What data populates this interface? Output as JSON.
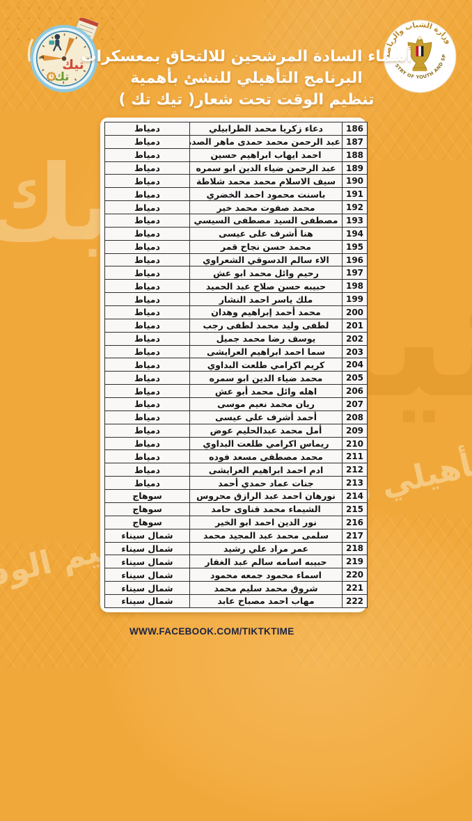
{
  "header": {
    "title_line1": "أسماء السادة المرشحين للالتحاق بمعسكرات",
    "title_line2": "البرنامج التأهيلي للنشئ بأهمية",
    "title_line3": "تنظيم الوقت تحت شعار( تيك تك )",
    "ministry_logo": {
      "arabic": "وزارة الشباب والرياضة",
      "english": "MINISTRY OF YOUTH AND SPORTS"
    },
    "tiktok_logo": {
      "word1": "تيك",
      "word2": "تك"
    }
  },
  "table": {
    "rows": [
      {
        "no": "186",
        "name": "دعاء زكريا محمد الطرابيلي",
        "gov": "دمياط"
      },
      {
        "no": "187",
        "name": "عبد الرحمن محمد حمدى ماهر الصده",
        "gov": "دمياط"
      },
      {
        "no": "188",
        "name": "احمد ايهاب ابراهيم حسين",
        "gov": "دمياط"
      },
      {
        "no": "189",
        "name": "عبد الرحمن ضياء الدين ابو سمره",
        "gov": "دمياط"
      },
      {
        "no": "190",
        "name": "سيف الاسلام محمد محمد شلاطة",
        "gov": "دمياط"
      },
      {
        "no": "191",
        "name": "باسنت محمود احمد الخضري",
        "gov": "دمياط"
      },
      {
        "no": "192",
        "name": "محمد صفوت محمد خير",
        "gov": "دمياط"
      },
      {
        "no": "193",
        "name": "مصطفى السيد مصطفى السيسي",
        "gov": "دمياط"
      },
      {
        "no": "194",
        "name": "هنا أشرف على عيسى",
        "gov": "دمياط"
      },
      {
        "no": "195",
        "name": "محمد حسن نجاح قمر",
        "gov": "دمياط"
      },
      {
        "no": "196",
        "name": "الاء سالم الدسوقي الشعراوي",
        "gov": "دمياط"
      },
      {
        "no": "197",
        "name": "رحيم وائل محمد ابو عش",
        "gov": "دمياط"
      },
      {
        "no": "198",
        "name": "حبيبه حسن صلاح عبد الحميد",
        "gov": "دمياط"
      },
      {
        "no": "199",
        "name": "ملك ياسر احمد النشار",
        "gov": "دمياط"
      },
      {
        "no": "200",
        "name": "محمد أحمد إبراهيم وهدان",
        "gov": "دمياط"
      },
      {
        "no": "201",
        "name": "لطفى وليد محمد لطفى رجب",
        "gov": "دمياط"
      },
      {
        "no": "202",
        "name": "يوسف رضا محمد جميل",
        "gov": "دمياط"
      },
      {
        "no": "203",
        "name": "سما احمد ابراهيم العرايشى",
        "gov": "دمياط"
      },
      {
        "no": "204",
        "name": "كريم اكرامي طلعت البداوي",
        "gov": "دمياط"
      },
      {
        "no": "205",
        "name": "محمد ضياء الدين ابو سمره",
        "gov": "دمياط"
      },
      {
        "no": "206",
        "name": "اهله وائل محمد أبو عش",
        "gov": "دمياط"
      },
      {
        "no": "207",
        "name": "ريان محمد نعيم موسى",
        "gov": "دمياط"
      },
      {
        "no": "208",
        "name": "أحمد أشرف على عيسى",
        "gov": "دمياط"
      },
      {
        "no": "209",
        "name": "أمل محمد عبدالحليم عوض",
        "gov": "دمياط"
      },
      {
        "no": "210",
        "name": "ريماس اكرامي طلعت البداوي",
        "gov": "دمياط"
      },
      {
        "no": "211",
        "name": "محمد مصطفى مسعد فوده",
        "gov": "دمياط"
      },
      {
        "no": "212",
        "name": "ادم احمد ابراهيم العرايشى",
        "gov": "دمياط"
      },
      {
        "no": "213",
        "name": "جنات عماد حمدي أحمد",
        "gov": "دمياط"
      },
      {
        "no": "214",
        "name": "نورهان احمد عبد الرازق محروس",
        "gov": "سوهاج"
      },
      {
        "no": "215",
        "name": "الشيماء محمد قناوى حامد",
        "gov": "سوهاج"
      },
      {
        "no": "216",
        "name": "نور الدين احمد ابو الخير",
        "gov": "سوهاج"
      },
      {
        "no": "217",
        "name": "سلمى محمد عبد المجيد محمد",
        "gov": "شمال سيناء"
      },
      {
        "no": "218",
        "name": "عمر مراد علي رشيد",
        "gov": "شمال سيناء"
      },
      {
        "no": "219",
        "name": "حبيبه اسامه سالم عبد الغفار",
        "gov": "شمال سيناء"
      },
      {
        "no": "220",
        "name": "اسماء محمود جمعه محمود",
        "gov": "شمال سيناء"
      },
      {
        "no": "221",
        "name": "شروق محمد سليم محمد",
        "gov": "شمال سيناء"
      },
      {
        "no": "222",
        "name": "مهاب احمد مصباح عابد",
        "gov": "شمال سيناء"
      }
    ]
  },
  "footer": {
    "url": "WWW.FACEBOOK.COM/TIKTKTIME"
  },
  "watermarks": {
    "big": "تيك",
    "left": "تيك",
    "script": "التأهيلي للنشئ بأهمية تنظيم الوقت"
  },
  "colors": {
    "background": "#f1a83a",
    "footer_text": "#1d2342",
    "table_border": "#2c2c2c",
    "title_text": "#ffffff"
  }
}
